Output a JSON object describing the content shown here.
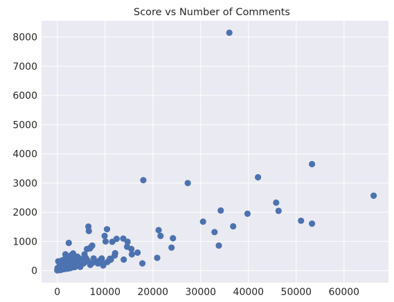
{
  "chart_data": {
    "type": "scatter",
    "title": "Score vs Number of Comments",
    "xlabel": "",
    "ylabel": "",
    "xlim": [
      -3300,
      69300
    ],
    "ylim": [
      -410,
      8560
    ],
    "x_ticks": [
      0,
      10000,
      20000,
      30000,
      40000,
      50000,
      60000
    ],
    "y_ticks": [
      0,
      1000,
      2000,
      3000,
      4000,
      5000,
      6000,
      7000,
      8000
    ],
    "grid": true,
    "colors": {
      "background": "#eaeaf2",
      "grid": "#ffffff",
      "marker": "#4c72b0",
      "text": "#262626"
    },
    "points": [
      [
        36000,
        8150
      ],
      [
        53300,
        3650
      ],
      [
        42000,
        3200
      ],
      [
        18000,
        3100
      ],
      [
        27300,
        3000
      ],
      [
        66200,
        2570
      ],
      [
        45800,
        2330
      ],
      [
        46300,
        2050
      ],
      [
        34200,
        2060
      ],
      [
        39800,
        1950
      ],
      [
        51000,
        1710
      ],
      [
        53300,
        1610
      ],
      [
        30500,
        1680
      ],
      [
        36800,
        1520
      ],
      [
        32900,
        1320
      ],
      [
        33800,
        860
      ],
      [
        24200,
        1110
      ],
      [
        23900,
        790
      ],
      [
        21200,
        1390
      ],
      [
        21600,
        1190
      ],
      [
        20900,
        440
      ],
      [
        17800,
        250
      ],
      [
        16800,
        620
      ],
      [
        15500,
        740
      ],
      [
        15600,
        560
      ],
      [
        14700,
        990
      ],
      [
        14600,
        820
      ],
      [
        13800,
        1100
      ],
      [
        13900,
        380
      ],
      [
        12400,
        1090
      ],
      [
        12100,
        600
      ],
      [
        11500,
        990
      ],
      [
        11200,
        380
      ],
      [
        10400,
        1420
      ],
      [
        10100,
        1000
      ],
      [
        9900,
        1190
      ],
      [
        9600,
        180
      ],
      [
        9300,
        420
      ],
      [
        8800,
        340
      ],
      [
        7300,
        860
      ],
      [
        7000,
        800
      ],
      [
        6800,
        760
      ],
      [
        6500,
        1510
      ],
      [
        6600,
        1360
      ],
      [
        6200,
        740
      ],
      [
        6000,
        430
      ],
      [
        5700,
        560
      ],
      [
        5300,
        330
      ],
      [
        5000,
        210
      ],
      [
        4600,
        420
      ],
      [
        4200,
        480
      ],
      [
        3900,
        420
      ],
      [
        3500,
        360
      ],
      [
        3300,
        590
      ],
      [
        3100,
        460
      ],
      [
        2900,
        530
      ],
      [
        2700,
        310
      ],
      [
        2400,
        950
      ],
      [
        2300,
        420
      ],
      [
        2100,
        230
      ],
      [
        1900,
        340
      ],
      [
        1700,
        560
      ],
      [
        1500,
        260
      ],
      [
        1300,
        150
      ],
      [
        1100,
        200
      ],
      [
        900,
        120
      ],
      [
        700,
        80
      ],
      [
        500,
        180
      ],
      [
        400,
        110
      ],
      [
        300,
        40
      ],
      [
        200,
        320
      ],
      [
        150,
        60
      ],
      [
        100,
        20
      ],
      [
        50,
        90
      ],
      [
        0,
        10
      ],
      [
        8000,
        300
      ],
      [
        7600,
        420
      ],
      [
        7200,
        250
      ],
      [
        6900,
        200
      ],
      [
        5500,
        250
      ],
      [
        4800,
        130
      ],
      [
        4400,
        300
      ],
      [
        3700,
        210
      ],
      [
        3000,
        150
      ],
      [
        2600,
        180
      ],
      [
        2000,
        100
      ],
      [
        1600,
        60
      ],
      [
        1200,
        50
      ],
      [
        800,
        30
      ],
      [
        600,
        20
      ],
      [
        5200,
        380
      ],
      [
        4000,
        280
      ],
      [
        3600,
        120
      ],
      [
        2800,
        90
      ],
      [
        2200,
        70
      ],
      [
        1800,
        420
      ],
      [
        1400,
        380
      ],
      [
        1000,
        350
      ],
      [
        600,
        300
      ],
      [
        2500,
        240
      ],
      [
        3400,
        180
      ],
      [
        4300,
        160
      ],
      [
        5800,
        300
      ],
      [
        6300,
        350
      ],
      [
        8500,
        250
      ],
      [
        9000,
        330
      ],
      [
        10500,
        300
      ],
      [
        11000,
        410
      ],
      [
        12000,
        520
      ],
      [
        9400,
        270
      ]
    ]
  }
}
